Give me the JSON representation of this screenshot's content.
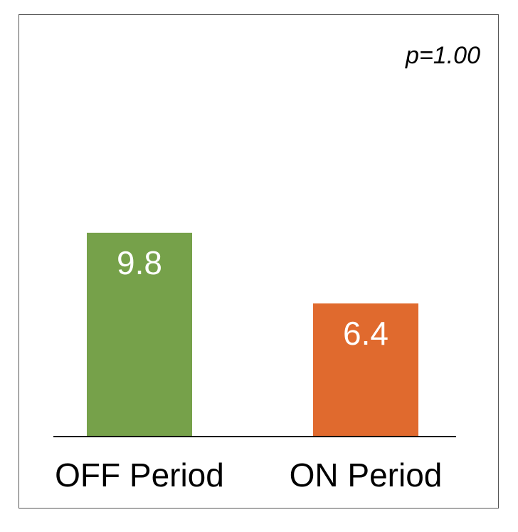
{
  "chart_data": {
    "type": "bar",
    "categories": [
      "OFF Period",
      "ON Period"
    ],
    "values": [
      9.8,
      6.4
    ],
    "value_labels": [
      "9.8",
      "6.4"
    ],
    "colors": [
      "#76a14a",
      "#e06a2e"
    ],
    "annotation": "p=1.00",
    "title": "",
    "xlabel": "",
    "ylabel": "",
    "ylim": [
      0,
      20
    ],
    "grid": false
  }
}
